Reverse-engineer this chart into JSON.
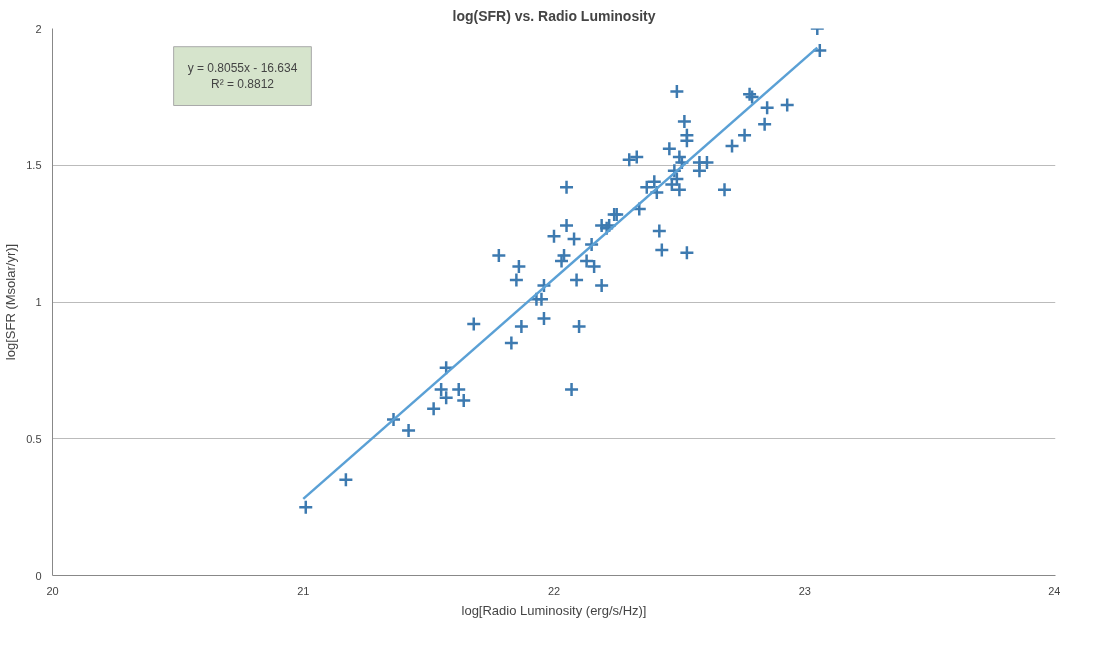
{
  "chart_data": {
    "type": "scatter",
    "title": "log(SFR) vs. Radio Luminosity",
    "xlabel": "log[Radio Luminosity (erg/s/Hz)]",
    "ylabel": "log[SFR (Msolar/yr)]",
    "annotations": [
      "y = 0.8055x - 16.634\nR² = 0.8812"
    ],
    "xlim": [
      20,
      24
    ],
    "xticks": [
      20,
      21,
      22,
      23,
      24
    ],
    "ylim": [
      0,
      2
    ],
    "yticks": [
      0,
      0.5,
      1,
      1.5,
      2
    ],
    "grid": "y",
    "series": [
      {
        "marker": "cross",
        "color": "#3d7ab0",
        "x": [
          21.01,
          21.17,
          21.36,
          21.42,
          21.52,
          21.57,
          21.55,
          21.57,
          21.62,
          21.64,
          21.68,
          21.83,
          21.87,
          21.78,
          21.86,
          21.85,
          21.93,
          21.95,
          21.96,
          21.96,
          22.0,
          22.04,
          22.03,
          22.05,
          22.05,
          22.07,
          22.08,
          22.09,
          22.1,
          22.13,
          22.15,
          22.16,
          22.19,
          22.19,
          22.22,
          22.21,
          22.24,
          22.25,
          22.3,
          22.33,
          22.34,
          22.37,
          22.4,
          22.41,
          22.42,
          22.43,
          22.46,
          22.47,
          22.48,
          22.49,
          22.49,
          22.5,
          22.5,
          22.51,
          22.52,
          22.53,
          22.53,
          22.53,
          22.58,
          22.58,
          22.61,
          22.68,
          22.71,
          22.76,
          22.78,
          22.79,
          22.84,
          22.85,
          22.93,
          23.05,
          23.06
        ],
        "values": [
          0.25,
          0.35,
          0.57,
          0.53,
          0.61,
          0.76,
          0.68,
          0.65,
          0.68,
          0.64,
          0.92,
          0.85,
          0.91,
          1.17,
          1.13,
          1.08,
          1.01,
          1.01,
          1.06,
          0.94,
          1.24,
          1.17,
          1.15,
          1.42,
          1.28,
          0.68,
          1.23,
          1.08,
          0.91,
          1.15,
          1.21,
          1.13,
          1.06,
          1.28,
          1.28,
          1.27,
          1.32,
          1.32,
          1.52,
          1.53,
          1.34,
          1.42,
          1.44,
          1.4,
          1.26,
          1.19,
          1.56,
          1.43,
          1.48,
          1.45,
          1.77,
          1.41,
          1.53,
          1.51,
          1.66,
          1.61,
          1.59,
          1.18,
          1.51,
          1.48,
          1.51,
          1.41,
          1.57,
          1.61,
          1.76,
          1.75,
          1.65,
          1.71,
          1.72,
          2.0,
          1.92
        ]
      },
      {
        "type": "line",
        "color": "#5aa0d5",
        "x": [
          21.0,
          23.05
        ],
        "values": [
          0.28,
          1.93
        ]
      }
    ]
  }
}
